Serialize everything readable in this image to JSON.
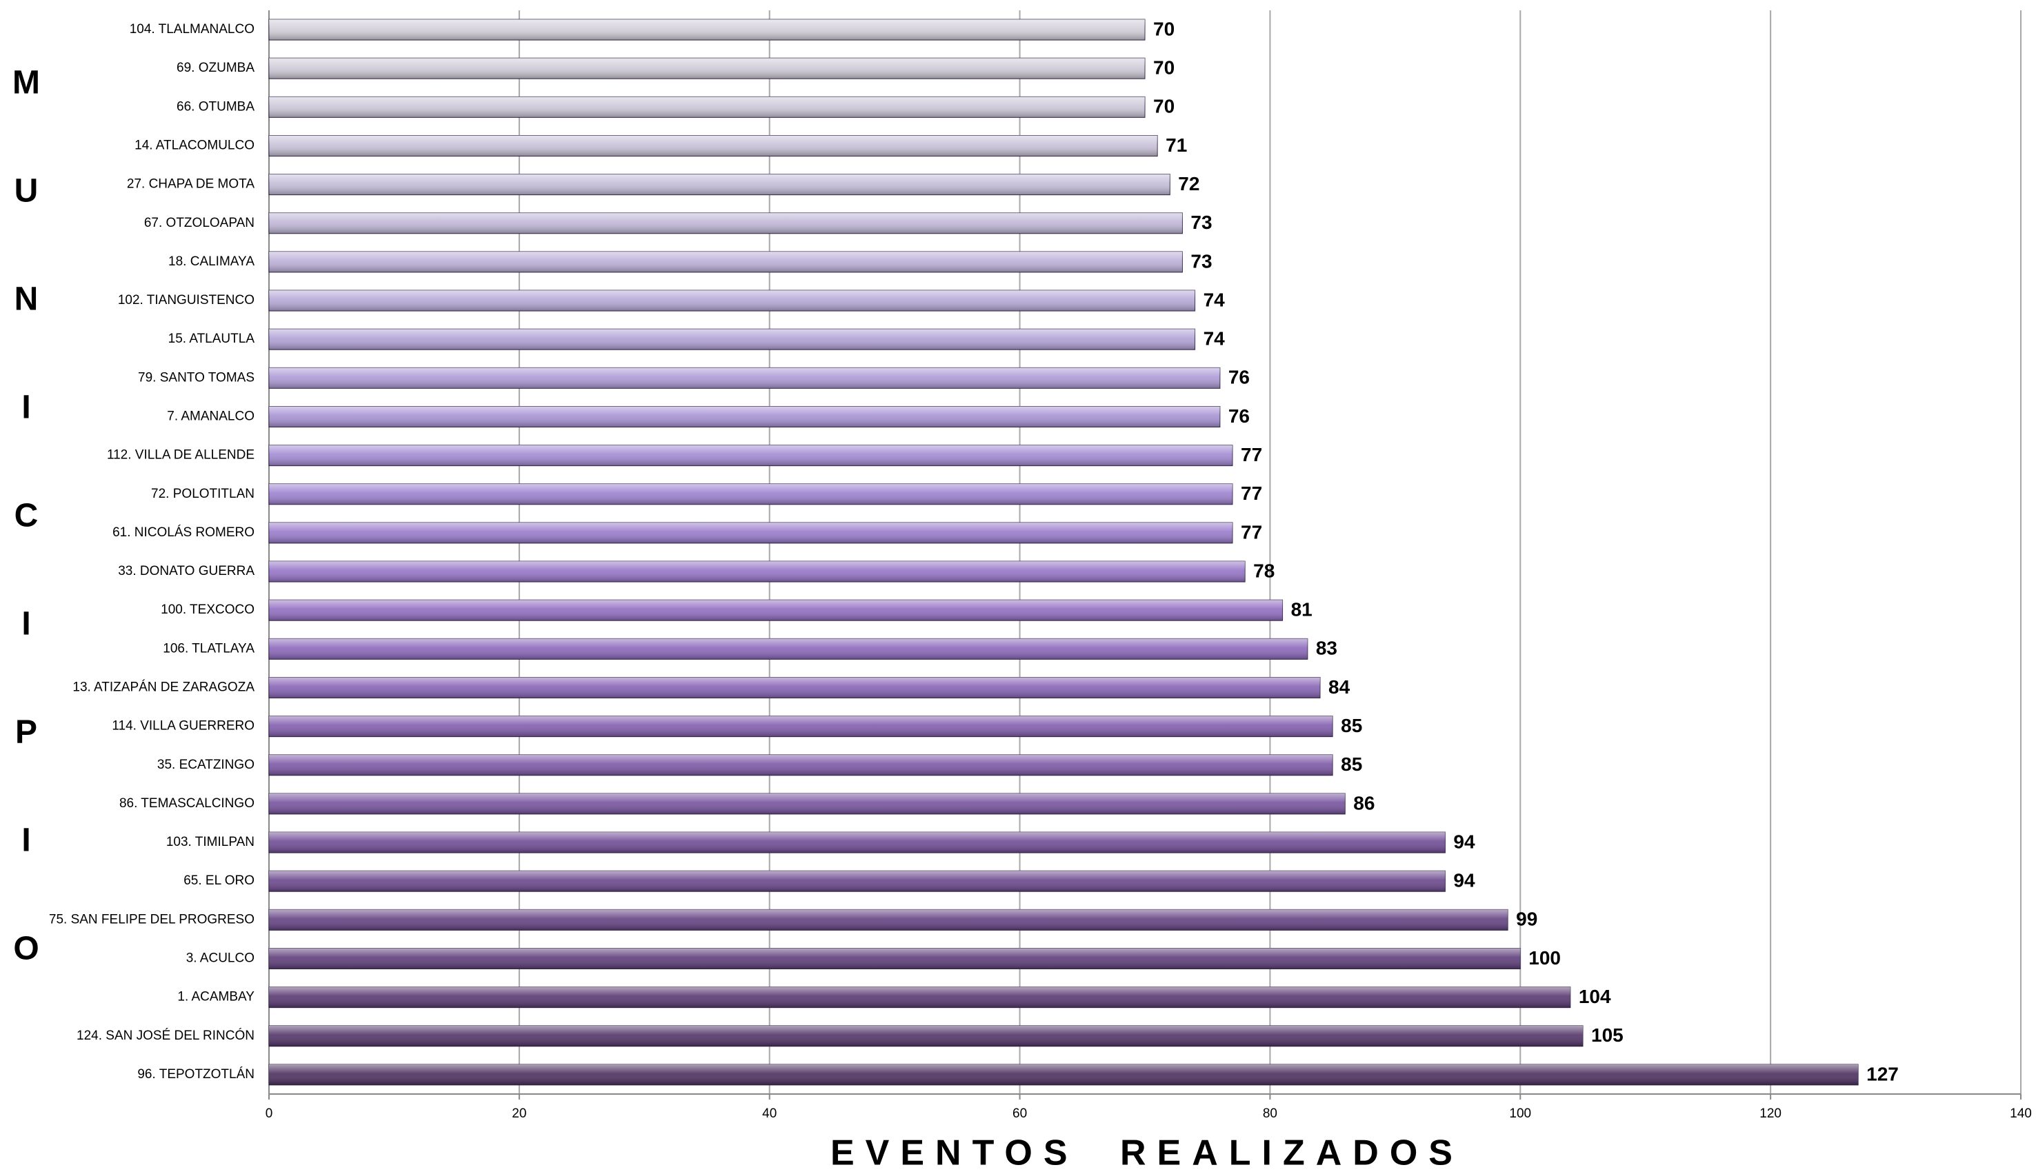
{
  "chart_data": {
    "type": "barh",
    "xlabel": "EVENTOS REALIZADOS",
    "ylabel": "MUNICIPIO",
    "categories": [
      "104. TLALMANALCO",
      "69. OZUMBA",
      "66. OTUMBA",
      "14. ATLACOMULCO",
      "27. CHAPA DE MOTA",
      "67. OTZOLOAPAN",
      "18. CALIMAYA",
      "102. TIANGUISTENCO",
      "15. ATLAUTLA",
      "79. SANTO TOMAS",
      "7. AMANALCO",
      "112. VILLA DE ALLENDE",
      "72. POLOTITLAN",
      "61. NICOLÁS ROMERO",
      "33. DONATO GUERRA",
      "100. TEXCOCO",
      "106. TLATLAYA",
      "13. ATIZAPÁN DE ZARAGOZA",
      "114. VILLA GUERRERO",
      "35. ECATZINGO",
      "86. TEMASCALCINGO",
      "103. TIMILPAN",
      "65. EL ORO",
      "75. SAN FELIPE DEL PROGRESO",
      "3. ACULCO",
      "1. ACAMBAY",
      "124. SAN JOSÉ DEL RINCÓN",
      "96. TEPOTZOTLÁN"
    ],
    "values": [
      70,
      70,
      70,
      71,
      72,
      73,
      73,
      74,
      74,
      76,
      76,
      77,
      77,
      77,
      78,
      81,
      83,
      84,
      85,
      85,
      86,
      94,
      94,
      99,
      100,
      104,
      105,
      127
    ],
    "colors": [
      "#d2cfd9",
      "#cfcbd8",
      "#ccc7d8",
      "#c8c2d8",
      "#c4bdd8",
      "#c0b7d8",
      "#bbb0d8",
      "#b6a9d8",
      "#b1a2d7",
      "#ac9ad6",
      "#a792d5",
      "#a28ad3",
      "#9d82d0",
      "#997bcc",
      "#9574c7",
      "#916ec2",
      "#8c68bc",
      "#8763b5",
      "#825dae",
      "#7c58a6",
      "#76529e",
      "#704c95",
      "#6a478c",
      "#644283",
      "#5e3d7a",
      "#583871",
      "#523468",
      "#4c2f5f"
    ],
    "xlim": [
      0,
      140
    ],
    "xticks": [
      0,
      20,
      40,
      60,
      80,
      100,
      120,
      140
    ],
    "grid": true
  }
}
